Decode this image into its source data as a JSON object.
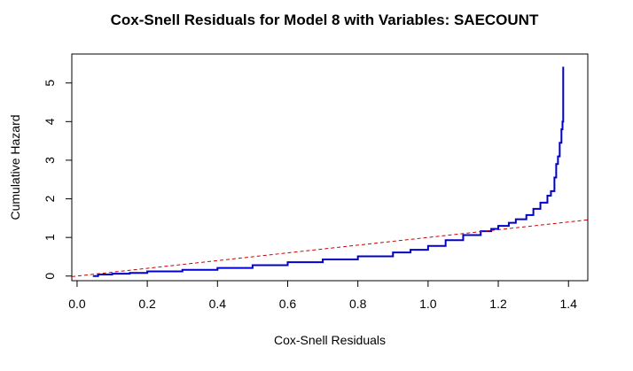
{
  "chart_data": {
    "type": "line",
    "title": "Cox-Snell Residuals for Model 8 with Variables: SAECOUNT",
    "xlabel": "Cox-Snell Residuals",
    "ylabel": "Cumulative Hazard",
    "xlim": [
      -0.015,
      1.455
    ],
    "ylim": [
      -0.12,
      5.75
    ],
    "xticks": [
      0.0,
      0.2,
      0.4,
      0.6,
      0.8,
      1.0,
      1.2,
      1.4
    ],
    "xtick_labels": [
      "0.0",
      "0.2",
      "0.4",
      "0.6",
      "0.8",
      "1.0",
      "1.2",
      "1.4"
    ],
    "yticks": [
      0,
      1,
      2,
      3,
      4,
      5
    ],
    "ytick_labels": [
      "0",
      "1",
      "2",
      "3",
      "4",
      "5"
    ],
    "grid": false,
    "series": [
      {
        "color": "#0000cc",
        "style": "step",
        "x": [
          0.045,
          0.06,
          0.1,
          0.15,
          0.2,
          0.3,
          0.4,
          0.5,
          0.6,
          0.7,
          0.8,
          0.9,
          0.95,
          1.0,
          1.05,
          1.1,
          1.15,
          1.18,
          1.2,
          1.23,
          1.25,
          1.28,
          1.3,
          1.32,
          1.34,
          1.35,
          1.36,
          1.365,
          1.37,
          1.375,
          1.38,
          1.383,
          1.385
        ],
        "values": [
          0.0,
          0.04,
          0.06,
          0.08,
          0.12,
          0.16,
          0.21,
          0.28,
          0.36,
          0.43,
          0.51,
          0.61,
          0.68,
          0.78,
          0.93,
          1.06,
          1.16,
          1.22,
          1.3,
          1.38,
          1.47,
          1.58,
          1.74,
          1.9,
          2.08,
          2.2,
          2.55,
          2.9,
          3.1,
          3.45,
          3.8,
          4.0,
          5.42
        ]
      },
      {
        "color": "#cc0000",
        "style": "dashed",
        "x": [
          -0.015,
          1.455
        ],
        "values": [
          -0.015,
          1.455
        ]
      }
    ]
  }
}
